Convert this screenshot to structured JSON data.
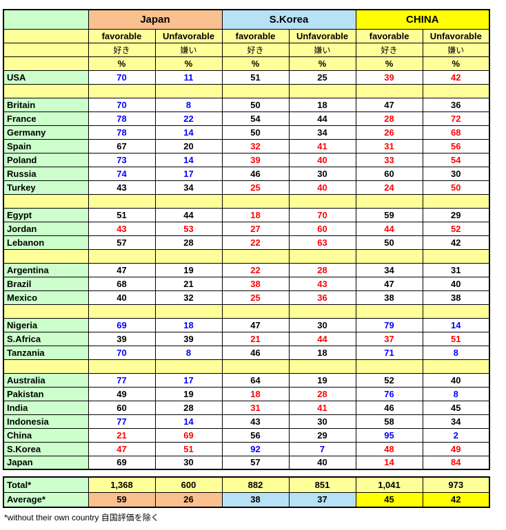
{
  "colors": {
    "label_bg": "#CCFFCC",
    "subheader_bg": "#FFFF99",
    "japan_bg": "#FAC090",
    "skorea_bg": "#B7E1F5",
    "china_bg": "#FFFF00",
    "data_bg": "#FFFFFF",
    "text_blue": "#0000FF",
    "text_red": "#FF0000",
    "text_black": "#000000",
    "border": "#000000"
  },
  "footnote": "*without their own country 自国評価を除く",
  "chart_data": {
    "type": "table",
    "column_groups": [
      "Japan",
      "S.Korea",
      "CHINA"
    ],
    "columns": [
      "favorable",
      "Unfavorable",
      "favorable",
      "Unfavorable",
      "favorable",
      "Unfavorable"
    ],
    "columns_jp": [
      "好き",
      "嫌い",
      "好き",
      "嫌い",
      "好き",
      "嫌い"
    ],
    "columns_pct": [
      "%",
      "%",
      "%",
      "%",
      "%",
      "%"
    ],
    "rows": [
      {
        "country": "USA",
        "values": [
          70,
          11,
          51,
          25,
          39,
          42
        ],
        "colors": [
          "b",
          "b",
          "k",
          "k",
          "r",
          "r"
        ]
      },
      {
        "sep": true
      },
      {
        "country": "Britain",
        "values": [
          70,
          8,
          50,
          18,
          47,
          36
        ],
        "colors": [
          "b",
          "b",
          "k",
          "k",
          "k",
          "k"
        ]
      },
      {
        "country": "France",
        "values": [
          78,
          22,
          54,
          44,
          28,
          72
        ],
        "colors": [
          "b",
          "b",
          "k",
          "k",
          "r",
          "r"
        ]
      },
      {
        "country": "Germany",
        "values": [
          78,
          14,
          50,
          34,
          26,
          68
        ],
        "colors": [
          "b",
          "b",
          "k",
          "k",
          "r",
          "r"
        ]
      },
      {
        "country": "Spain",
        "values": [
          67,
          20,
          32,
          41,
          31,
          56
        ],
        "colors": [
          "k",
          "k",
          "r",
          "r",
          "r",
          "r"
        ]
      },
      {
        "country": "Poland",
        "values": [
          73,
          14,
          39,
          40,
          33,
          54
        ],
        "colors": [
          "b",
          "b",
          "r",
          "r",
          "r",
          "r"
        ]
      },
      {
        "country": "Russia",
        "values": [
          74,
          17,
          46,
          30,
          60,
          30
        ],
        "colors": [
          "b",
          "b",
          "k",
          "k",
          "k",
          "k"
        ]
      },
      {
        "country": "Turkey",
        "values": [
          43,
          34,
          25,
          40,
          24,
          50
        ],
        "colors": [
          "k",
          "k",
          "r",
          "r",
          "r",
          "r"
        ]
      },
      {
        "sep": true
      },
      {
        "country": "Egypt",
        "values": [
          51,
          44,
          18,
          70,
          59,
          29
        ],
        "colors": [
          "k",
          "k",
          "r",
          "r",
          "k",
          "k"
        ]
      },
      {
        "country": "Jordan",
        "values": [
          43,
          53,
          27,
          60,
          44,
          52
        ],
        "colors": [
          "r",
          "r",
          "r",
          "r",
          "r",
          "r"
        ]
      },
      {
        "country": "Lebanon",
        "values": [
          57,
          28,
          22,
          63,
          50,
          42
        ],
        "colors": [
          "k",
          "k",
          "r",
          "r",
          "k",
          "k"
        ]
      },
      {
        "sep": true
      },
      {
        "country": "Argentina",
        "values": [
          47,
          19,
          22,
          28,
          34,
          31
        ],
        "colors": [
          "k",
          "k",
          "r",
          "r",
          "k",
          "k"
        ]
      },
      {
        "country": "Brazil",
        "values": [
          68,
          21,
          38,
          43,
          47,
          40
        ],
        "colors": [
          "k",
          "k",
          "r",
          "r",
          "k",
          "k"
        ]
      },
      {
        "country": "Mexico",
        "values": [
          40,
          32,
          25,
          36,
          38,
          38
        ],
        "colors": [
          "k",
          "k",
          "r",
          "r",
          "k",
          "k"
        ]
      },
      {
        "sep": true
      },
      {
        "country": "Nigeria",
        "values": [
          69,
          18,
          47,
          30,
          79,
          14
        ],
        "colors": [
          "b",
          "b",
          "k",
          "k",
          "b",
          "b"
        ]
      },
      {
        "country": "S.Africa",
        "values": [
          39,
          39,
          21,
          44,
          37,
          51
        ],
        "colors": [
          "k",
          "k",
          "r",
          "r",
          "r",
          "r"
        ]
      },
      {
        "country": "Tanzania",
        "values": [
          70,
          8,
          46,
          18,
          71,
          8
        ],
        "colors": [
          "b",
          "b",
          "k",
          "k",
          "b",
          "b"
        ]
      },
      {
        "sep": true
      },
      {
        "country": "Australia",
        "values": [
          77,
          17,
          64,
          19,
          52,
          40
        ],
        "colors": [
          "b",
          "b",
          "k",
          "k",
          "k",
          "k"
        ]
      },
      {
        "country": "Pakistan",
        "values": [
          49,
          19,
          18,
          28,
          76,
          8
        ],
        "colors": [
          "k",
          "k",
          "r",
          "r",
          "b",
          "b"
        ]
      },
      {
        "country": "India",
        "values": [
          60,
          28,
          31,
          41,
          46,
          45
        ],
        "colors": [
          "k",
          "k",
          "r",
          "r",
          "k",
          "k"
        ]
      },
      {
        "country": "Indonesia",
        "values": [
          77,
          14,
          43,
          30,
          58,
          34
        ],
        "colors": [
          "b",
          "b",
          "k",
          "k",
          "k",
          "k"
        ]
      },
      {
        "country": "China",
        "values": [
          21,
          69,
          56,
          29,
          95,
          2
        ],
        "colors": [
          "r",
          "r",
          "k",
          "k",
          "b",
          "b"
        ]
      },
      {
        "country": "S.Korea",
        "values": [
          47,
          51,
          92,
          7,
          48,
          49
        ],
        "colors": [
          "r",
          "r",
          "b",
          "b",
          "r",
          "r"
        ]
      },
      {
        "country": "Japan",
        "values": [
          69,
          30,
          57,
          40,
          14,
          84
        ],
        "colors": [
          "k",
          "k",
          "k",
          "k",
          "r",
          "r"
        ]
      }
    ],
    "totals": {
      "label": "Total*",
      "values": [
        1368,
        600,
        882,
        851,
        1041,
        973
      ],
      "display": [
        "1,368",
        "600",
        "882",
        "851",
        "1,041",
        "973"
      ]
    },
    "averages": {
      "label": "Average*",
      "values": [
        59,
        26,
        38,
        37,
        45,
        42
      ],
      "display": [
        "59",
        "26",
        "38",
        "37",
        "45",
        "42"
      ]
    }
  }
}
